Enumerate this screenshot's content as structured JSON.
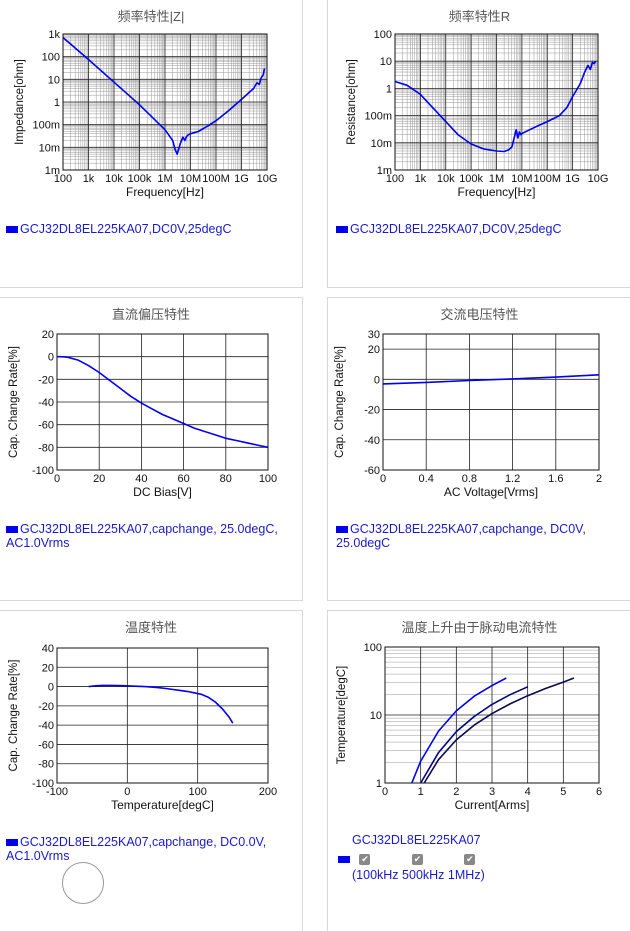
{
  "charts": [
    {
      "title": "频率特性|Z|",
      "type": "line",
      "scale": "loglog",
      "xlabel": "Frequency[Hz]",
      "ylabel": "Impedance[ohm]",
      "xlim": [
        100,
        10000000000
      ],
      "ylim": [
        0.001,
        1000
      ],
      "xticks": [
        "100",
        "1k",
        "10k",
        "100k",
        "1M",
        "10M",
        "100M",
        "1G",
        "10G"
      ],
      "yticks": [
        "1k",
        "100",
        "10",
        "1",
        "100m",
        "10m",
        "1m"
      ],
      "legend": "GCJ32DL8EL225KA07,DC0V,25degC",
      "color": "#0000ee",
      "series": [
        {
          "x": [
            100,
            1000,
            10000,
            100000,
            1000000,
            2000000,
            2500000,
            3000000,
            4000000,
            5000000,
            6000000,
            7000000,
            8000000,
            10000000,
            20000000,
            50000000,
            100000000,
            300000000,
            1000000000,
            3000000000,
            4000000000,
            5000000000,
            6000000000,
            7000000000,
            8000000000
          ],
          "y": [
            700,
            75,
            7.5,
            0.75,
            0.06,
            0.02,
            0.008,
            0.005,
            0.015,
            0.028,
            0.02,
            0.03,
            0.035,
            0.04,
            0.05,
            0.09,
            0.15,
            0.4,
            1.3,
            4,
            7,
            6,
            12,
            15,
            30
          ]
        }
      ]
    },
    {
      "title": "频率特性R",
      "type": "line",
      "scale": "loglog",
      "xlabel": "Frequency[Hz]",
      "ylabel": "Resistance[ohm]",
      "xlim": [
        100,
        10000000000
      ],
      "ylim": [
        0.001,
        100
      ],
      "xticks": [
        "100",
        "1k",
        "10k",
        "100k",
        "1M",
        "10M",
        "100M",
        "1G",
        "10G"
      ],
      "yticks": [
        "100",
        "10",
        "1",
        "100m",
        "10m",
        "1m"
      ],
      "legend": "GCJ32DL8EL225KA07,DC0V,25degC",
      "color": "#0000ee",
      "series": [
        {
          "x": [
            100,
            300,
            1000,
            3000,
            10000,
            30000,
            100000,
            300000,
            1000000,
            2000000,
            3000000,
            4000000,
            5000000,
            6000000,
            7000000,
            8000000,
            9000000,
            10000000,
            20000000,
            50000000,
            100000000,
            300000000,
            600000000,
            1000000000,
            2000000000,
            3000000000,
            4000000000,
            5000000000,
            6000000000,
            7000000000,
            8000000000
          ],
          "y": [
            1.8,
            1.3,
            0.6,
            0.2,
            0.06,
            0.02,
            0.009,
            0.006,
            0.005,
            0.0048,
            0.0055,
            0.007,
            0.015,
            0.03,
            0.015,
            0.025,
            0.02,
            0.022,
            0.03,
            0.045,
            0.06,
            0.1,
            0.2,
            0.5,
            1.5,
            4,
            7,
            5,
            9,
            8,
            10
          ]
        }
      ]
    },
    {
      "title": "直流偏压特性",
      "type": "line",
      "xlabel": "DC Bias[V]",
      "ylabel": "Cap. Change Rate[%]",
      "xlim": [
        0,
        100
      ],
      "ylim": [
        -100,
        20
      ],
      "xticks": [
        0,
        20,
        40,
        60,
        80,
        100
      ],
      "yticks": [
        20,
        0,
        -20,
        -40,
        -60,
        -80,
        -100
      ],
      "legend": "GCJ32DL8EL225KA07,capchange, 25.0degC, AC1.0Vrms",
      "color": "#0000ee",
      "series": [
        {
          "x": [
            0,
            2,
            5,
            10,
            15,
            20,
            25,
            30,
            35,
            40,
            45,
            50,
            55,
            60,
            65,
            70,
            75,
            80,
            85,
            90,
            95,
            100
          ],
          "y": [
            0,
            0,
            -0.5,
            -3,
            -8,
            -14,
            -21,
            -28,
            -35,
            -41,
            -46,
            -51,
            -55,
            -59,
            -63,
            -66,
            -69,
            -72,
            -74,
            -76,
            -78,
            -80
          ]
        }
      ]
    },
    {
      "title": "交流电压特性",
      "type": "line",
      "xlabel": "AC Voltage[Vrms]",
      "ylabel": "Cap. Change Rate[%]",
      "xlim": [
        0,
        2
      ],
      "ylim": [
        -60,
        30
      ],
      "xticks": [
        "0",
        "0.4",
        "0.8",
        "1.2",
        "1.6",
        "2"
      ],
      "yticks": [
        30,
        20,
        0,
        -20,
        -40,
        -60
      ],
      "legend": "GCJ32DL8EL225KA07,capchange, DC0V, 25.0degC",
      "color": "#0000ee",
      "series": [
        {
          "x": [
            0,
            0.4,
            0.8,
            1.2,
            1.6,
            2
          ],
          "y": [
            -3,
            -2,
            -0.8,
            0.3,
            1.5,
            3
          ]
        }
      ]
    },
    {
      "title": "温度特性",
      "type": "line",
      "xlabel": "Temperature[degC]",
      "ylabel": "Cap. Change Rate[%]",
      "xlim": [
        -100,
        200
      ],
      "ylim": [
        -100,
        40
      ],
      "xticks": [
        -100,
        0,
        100,
        200
      ],
      "yticks": [
        40,
        20,
        0,
        -20,
        -40,
        -60,
        -80,
        -100
      ],
      "legend": "GCJ32DL8EL225KA07,capchange, DC0.0V, AC1.0Vrms",
      "color": "#0000ee",
      "series": [
        {
          "x": [
            -55,
            -45,
            -35,
            -25,
            -15,
            -5,
            5,
            15,
            25,
            35,
            45,
            55,
            65,
            75,
            85,
            95,
            105,
            115,
            125,
            135,
            145,
            150
          ],
          "y": [
            0,
            0.8,
            1.2,
            1.2,
            1.1,
            0.9,
            0.6,
            0.3,
            0,
            -0.5,
            -1.2,
            -2,
            -3,
            -4,
            -5,
            -6.5,
            -8,
            -11,
            -16,
            -23,
            -32,
            -38
          ]
        }
      ]
    },
    {
      "title": "温度上升由于脉动电流特性",
      "type": "line",
      "scale": "logy",
      "xlabel": "Current[Arms]",
      "ylabel": "Temperature[degC]",
      "xlim": [
        0,
        6
      ],
      "ylim": [
        1,
        100
      ],
      "xticks": [
        "0",
        "1",
        "2",
        "3",
        "4",
        "5",
        "6"
      ],
      "yticks": [
        "100",
        "10",
        "1"
      ],
      "legend": "GCJ32DL8EL225KA07",
      "legend_items": [
        "100kHz",
        "500kHz",
        "1MHz"
      ],
      "legend_colors": [
        "#0000ee",
        "#000088",
        "#0a0a50"
      ],
      "series": [
        {
          "name": "100kHz",
          "x": [
            0.75,
            1,
            1.5,
            2,
            2.5,
            3,
            3.4
          ],
          "y": [
            1,
            2.1,
            5.8,
            11.5,
            18.9,
            27.1,
            35
          ]
        },
        {
          "name": "500kHz",
          "x": [
            1,
            1.5,
            2,
            2.5,
            3,
            3.5,
            4
          ],
          "y": [
            1,
            2.8,
            5.7,
            9.5,
            14.3,
            19.8,
            26
          ]
        },
        {
          "name": "1MHz",
          "x": [
            1.1,
            1.5,
            2,
            2.5,
            3,
            3.5,
            4,
            4.5,
            5,
            5.3
          ],
          "y": [
            1,
            2.2,
            4.3,
            7.1,
            10.5,
            14.5,
            19.2,
            24.5,
            30.5,
            35
          ]
        }
      ]
    }
  ]
}
